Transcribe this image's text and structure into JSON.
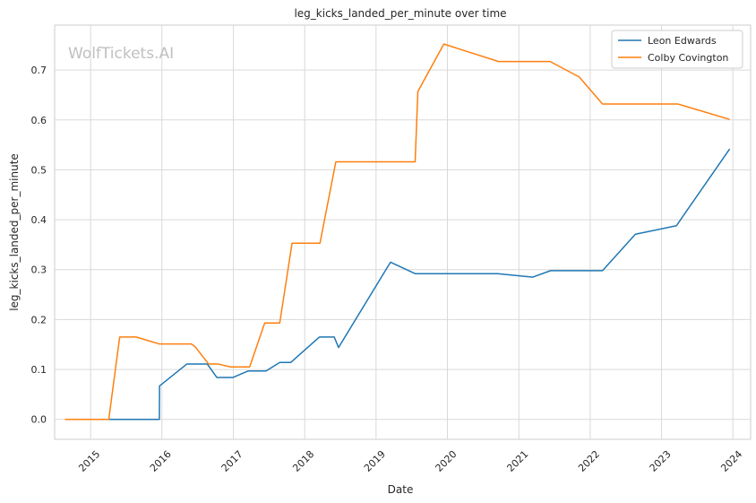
{
  "chart_data": {
    "type": "line",
    "title": "leg_kicks_landed_per_minute over time",
    "xlabel": "Date",
    "ylabel": "leg_kicks_landed_per_minute",
    "watermark": "WolfTickets.AI",
    "xlim": [
      "2014-07-01",
      "2024-04-01"
    ],
    "ylim": [
      -0.04,
      0.79
    ],
    "x_ticks": [
      "2015",
      "2016",
      "2017",
      "2018",
      "2019",
      "2020",
      "2021",
      "2022",
      "2023",
      "2024"
    ],
    "y_ticks": [
      "0.0",
      "0.1",
      "0.2",
      "0.3",
      "0.4",
      "0.5",
      "0.6",
      "0.7"
    ],
    "grid": true,
    "legend_position": "top-right",
    "series": [
      {
        "name": "Leon Edwards",
        "color": "#1f77b4",
        "points": [
          [
            "2014-08-23",
            0.0
          ],
          [
            "2015-04-18",
            0.0
          ],
          [
            "2015-12-19",
            0.0
          ],
          [
            "2015-12-20",
            0.067
          ],
          [
            "2016-05-08",
            0.111
          ],
          [
            "2016-08-20",
            0.111
          ],
          [
            "2016-10-08",
            0.084
          ],
          [
            "2016-12-30",
            0.084
          ],
          [
            "2017-03-18",
            0.097
          ],
          [
            "2017-06-17",
            0.097
          ],
          [
            "2017-08-26",
            0.114
          ],
          [
            "2017-10-21",
            0.114
          ],
          [
            "2018-03-17",
            0.165
          ],
          [
            "2018-06-01",
            0.165
          ],
          [
            "2018-06-23",
            0.144
          ],
          [
            "2019-03-16",
            0.315
          ],
          [
            "2019-07-20",
            0.292
          ],
          [
            "2020-09-15",
            0.292
          ],
          [
            "2021-03-13",
            0.285
          ],
          [
            "2021-06-12",
            0.298
          ],
          [
            "2022-03-05",
            0.298
          ],
          [
            "2022-08-20",
            0.371
          ],
          [
            "2023-03-18",
            0.388
          ],
          [
            "2023-12-16",
            0.542
          ]
        ]
      },
      {
        "name": "Colby Covington",
        "color": "#ff7f0e",
        "points": [
          [
            "2014-08-23",
            0.0
          ],
          [
            "2015-04-04",
            0.0
          ],
          [
            "2015-05-30",
            0.165
          ],
          [
            "2015-08-23",
            0.165
          ],
          [
            "2015-12-19",
            0.151
          ],
          [
            "2016-05-30",
            0.151
          ],
          [
            "2016-06-18",
            0.146
          ],
          [
            "2016-08-27",
            0.111
          ],
          [
            "2016-10-15",
            0.111
          ],
          [
            "2016-12-17",
            0.105
          ],
          [
            "2017-03-25",
            0.105
          ],
          [
            "2017-06-10",
            0.193
          ],
          [
            "2017-08-26",
            0.193
          ],
          [
            "2017-10-28",
            0.353
          ],
          [
            "2018-03-20",
            0.353
          ],
          [
            "2018-06-09",
            0.516
          ],
          [
            "2019-07-20",
            0.516
          ],
          [
            "2019-08-03",
            0.657
          ],
          [
            "2019-12-14",
            0.752
          ],
          [
            "2020-09-19",
            0.717
          ],
          [
            "2021-06-10",
            0.717
          ],
          [
            "2021-11-06",
            0.686
          ],
          [
            "2022-03-05",
            0.632
          ],
          [
            "2023-03-25",
            0.632
          ],
          [
            "2023-12-16",
            0.601
          ]
        ]
      }
    ]
  }
}
